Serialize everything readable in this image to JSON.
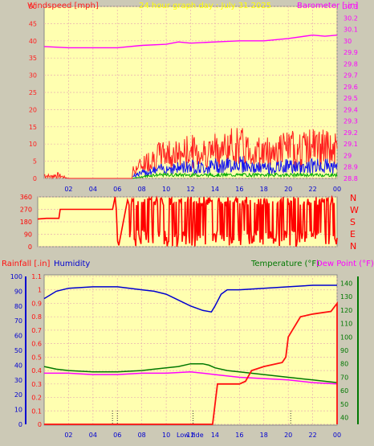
{
  "colors": {
    "page_bg": "#ccc9b6",
    "plot_bg": "#ffffb0",
    "windspeed": "#ff2020",
    "wind_mid": "#1515ee",
    "wind_low": "#00aa00",
    "barometer": "#ff00ff",
    "direction": "#ff0000",
    "rainfall": "#ff1010",
    "humidity": "#0000d0",
    "temperature": "#007800",
    "dewpoint": "#ff00ff",
    "title": "#ffff00",
    "grid": "#e8b0b0"
  },
  "chart_data": [
    {
      "type": "line",
      "title": "24 hour graph day : July 31 2025",
      "ylabel_left": "Windspeed [mph]",
      "ylabel_right": "Barometer [.in]",
      "x_ticks": [
        "02",
        "04",
        "06",
        "08",
        "10",
        "12",
        "14",
        "16",
        "18",
        "20",
        "22",
        "00"
      ],
      "y_left_ticks": [
        "50",
        "45",
        "40",
        "35",
        "30",
        "25",
        "20",
        "15",
        "10",
        "5",
        "0"
      ],
      "y_right_ticks": [
        "30.3",
        "30.2",
        "30.1",
        "30",
        "29.9",
        "29.8",
        "29.7",
        "29.6",
        "29.5",
        "29.4",
        "29.3",
        "29.2",
        "29.1",
        "29",
        "28.9",
        "28.8"
      ],
      "ylim_left": [
        0,
        50
      ],
      "ylim_right": [
        28.8,
        30.3
      ],
      "xlim_hours": [
        0,
        24
      ],
      "series": [
        {
          "name": "Windspeed",
          "key": "gust",
          "points": [
            [
              0,
              2
            ],
            [
              0.5,
              1
            ],
            [
              1,
              2
            ],
            [
              2,
              0
            ],
            [
              7,
              0
            ],
            [
              7.2,
              3
            ],
            [
              8,
              6
            ],
            [
              9,
              9
            ],
            [
              10,
              11
            ],
            [
              11,
              10
            ],
            [
              12,
              12
            ],
            [
              13,
              11
            ],
            [
              14,
              12
            ],
            [
              15,
              13
            ],
            [
              16,
              14
            ],
            [
              17,
              12
            ],
            [
              18,
              11
            ],
            [
              19,
              12
            ],
            [
              20,
              13
            ],
            [
              21,
              12
            ],
            [
              22,
              14
            ],
            [
              23,
              13
            ],
            [
              24,
              12
            ]
          ]
        },
        {
          "name": "Average",
          "key": "avg",
          "points": [
            [
              7.2,
              1
            ],
            [
              8,
              2
            ],
            [
              9,
              3
            ],
            [
              10,
              4
            ],
            [
              11,
              4
            ],
            [
              12,
              5
            ],
            [
              13,
              4
            ],
            [
              14,
              5
            ],
            [
              15,
              5
            ],
            [
              16,
              6
            ],
            [
              17,
              4
            ],
            [
              18,
              4
            ],
            [
              19,
              4
            ],
            [
              20,
              5
            ],
            [
              21,
              4
            ],
            [
              22,
              5
            ],
            [
              23,
              5
            ],
            [
              24,
              4
            ]
          ]
        },
        {
          "name": "Low",
          "key": "low",
          "points": [
            [
              7.2,
              0
            ],
            [
              9,
              1
            ],
            [
              12,
              1
            ],
            [
              15,
              1
            ],
            [
              18,
              1
            ],
            [
              21,
              1
            ],
            [
              24,
              1
            ]
          ]
        },
        {
          "name": "Barometer",
          "key": "baro",
          "points": [
            [
              0,
              29.95
            ],
            [
              2,
              29.94
            ],
            [
              4,
              29.94
            ],
            [
              6,
              29.94
            ],
            [
              8,
              29.96
            ],
            [
              10,
              29.97
            ],
            [
              11,
              29.99
            ],
            [
              12,
              29.98
            ],
            [
              14,
              29.99
            ],
            [
              16,
              30.0
            ],
            [
              18,
              30.0
            ],
            [
              20,
              30.02
            ],
            [
              22,
              30.05
            ],
            [
              23,
              30.04
            ],
            [
              24,
              30.05
            ]
          ]
        }
      ]
    },
    {
      "type": "line",
      "title": "",
      "ylabel_right": "",
      "direction_labels": [
        "N",
        "W",
        "S",
        "E",
        "N"
      ],
      "y_ticks": [
        "360",
        "270",
        "180",
        "90",
        "0"
      ],
      "ylim": [
        0,
        360
      ],
      "xlim_hours": [
        0,
        24
      ],
      "series": [
        {
          "name": "Wind Direction",
          "points": [
            [
              0,
              200
            ],
            [
              0.7,
              205
            ],
            [
              1.7,
              205
            ],
            [
              1.8,
              270
            ],
            [
              6,
              270
            ],
            [
              6.2,
              360
            ],
            [
              6.3,
              270
            ],
            [
              6.4,
              40
            ],
            [
              6.5,
              10
            ]
          ]
        }
      ]
    },
    {
      "type": "line",
      "ylabel_left_rain": "Rainfall [.in]",
      "ylabel_left_humidity": "Humidity",
      "ylabel_right_temp": "Temperature (°F)",
      "ylabel_right_dew": "Dew Point (°F)",
      "x_ticks": [
        "02",
        "04",
        "06",
        "08",
        "10",
        "12",
        "14",
        "16",
        "18",
        "20",
        "22",
        "00"
      ],
      "x_annotation": "Low tide",
      "y_rain_ticks": [
        "1.1",
        "1",
        "0.9",
        "0.8",
        "0.7",
        "0.6",
        "0.5",
        "0.4",
        "0.3",
        "0.2",
        "0.1",
        "0"
      ],
      "y_humidity_ticks": [
        "100",
        "90",
        "80",
        "70",
        "60",
        "50",
        "40",
        "30",
        "20",
        "10",
        "0"
      ],
      "y_temp_ticks": [
        "140",
        "130",
        "120",
        "110",
        "100",
        "90",
        "80",
        "70",
        "60",
        "50",
        "40"
      ],
      "ylim_rain": [
        0,
        1.1
      ],
      "ylim_humidity": [
        0,
        100
      ],
      "ylim_temp": [
        35,
        145
      ],
      "xlim_hours": [
        0,
        24
      ],
      "series": [
        {
          "name": "Humidity",
          "key": "hum",
          "points": [
            [
              0,
              85
            ],
            [
              1,
              90
            ],
            [
              2,
              92
            ],
            [
              4,
              93
            ],
            [
              6,
              93
            ],
            [
              7,
              92
            ],
            [
              8,
              91
            ],
            [
              9,
              90
            ],
            [
              10,
              88
            ],
            [
              11,
              84
            ],
            [
              12,
              80
            ],
            [
              13,
              77
            ],
            [
              13.7,
              76
            ],
            [
              14,
              80
            ],
            [
              14.5,
              88
            ],
            [
              15,
              91
            ],
            [
              16,
              91
            ],
            [
              18,
              92
            ],
            [
              20,
              93
            ],
            [
              22,
              94
            ],
            [
              24,
              94
            ]
          ]
        },
        {
          "name": "Temperature",
          "key": "temp",
          "points": [
            [
              0,
              78
            ],
            [
              1,
              76
            ],
            [
              2,
              75
            ],
            [
              4,
              74
            ],
            [
              6,
              74
            ],
            [
              8,
              75
            ],
            [
              9,
              76
            ],
            [
              10,
              77
            ],
            [
              11,
              78
            ],
            [
              12,
              80
            ],
            [
              13,
              80
            ],
            [
              13.5,
              79
            ],
            [
              14,
              77
            ],
            [
              15,
              75
            ],
            [
              16,
              74
            ],
            [
              18,
              72
            ],
            [
              20,
              70
            ],
            [
              22,
              68
            ],
            [
              24,
              66
            ]
          ]
        },
        {
          "name": "Dew Point",
          "key": "dew",
          "points": [
            [
              0,
              73
            ],
            [
              2,
              73
            ],
            [
              4,
              72
            ],
            [
              6,
              72
            ],
            [
              8,
              73
            ],
            [
              10,
              73
            ],
            [
              12,
              74
            ],
            [
              13,
              73
            ],
            [
              14,
              72
            ],
            [
              16,
              70
            ],
            [
              18,
              69
            ],
            [
              20,
              68
            ],
            [
              22,
              66
            ],
            [
              24,
              65
            ]
          ]
        },
        {
          "name": "Rainfall",
          "key": "rain",
          "points": [
            [
              0,
              0
            ],
            [
              13.8,
              0
            ],
            [
              14.2,
              0.3
            ],
            [
              16,
              0.3
            ],
            [
              16.5,
              0.32
            ],
            [
              17,
              0.4
            ],
            [
              18,
              0.43
            ],
            [
              19.5,
              0.46
            ],
            [
              19.8,
              0.5
            ],
            [
              20,
              0.65
            ],
            [
              21,
              0.8
            ],
            [
              22,
              0.82
            ],
            [
              23.5,
              0.84
            ],
            [
              24,
              0.9
            ],
            [
              24,
              0
            ]
          ]
        }
      ]
    }
  ]
}
